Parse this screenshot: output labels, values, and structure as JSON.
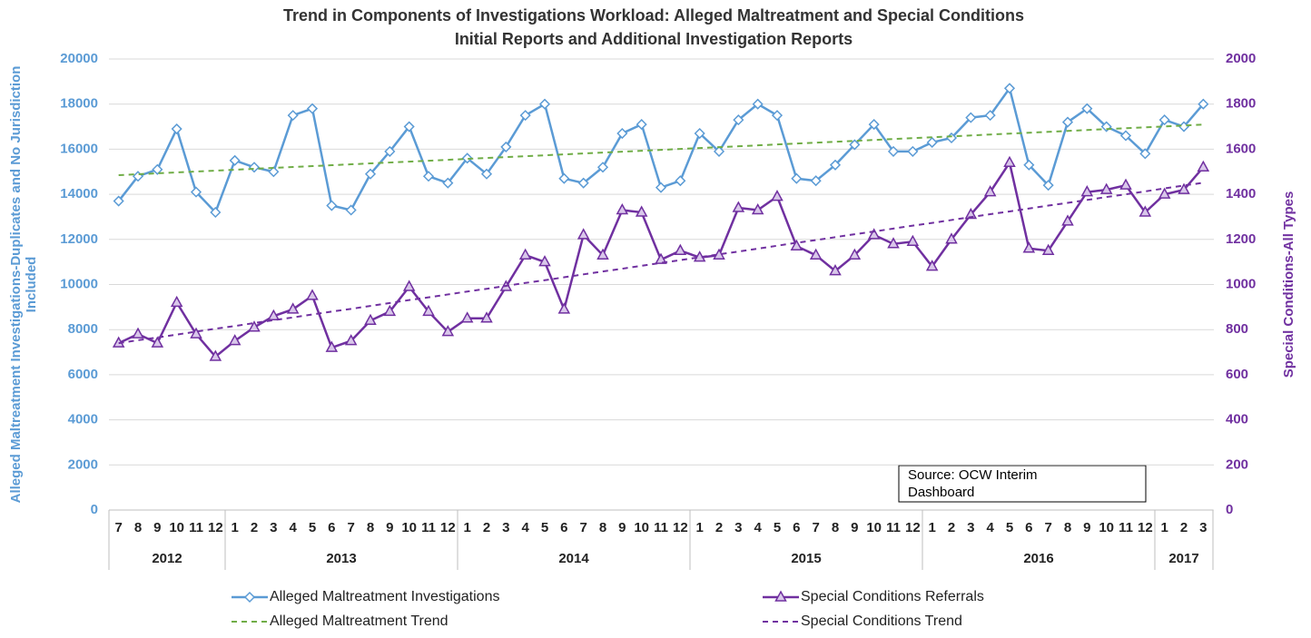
{
  "chart_data": {
    "type": "line",
    "title": [
      "Trend in Components of Investigations Workload: Alleged Maltreatment and Special Conditions",
      "Initial Reports and Additional Investigation Reports"
    ],
    "ylabel": [
      "Alleged Maltreatment Investigations-Duplicates and No Jurisdiction",
      "Included"
    ],
    "y2label": "Special Conditions-All Types",
    "categories": [
      "7",
      "8",
      "9",
      "10",
      "11",
      "12",
      "1",
      "2",
      "3",
      "4",
      "5",
      "6",
      "7",
      "8",
      "9",
      "10",
      "11",
      "12",
      "1",
      "2",
      "3",
      "4",
      "5",
      "6",
      "7",
      "8",
      "9",
      "10",
      "11",
      "12",
      "1",
      "2",
      "3",
      "4",
      "5",
      "6",
      "7",
      "8",
      "9",
      "10",
      "11",
      "12",
      "1",
      "2",
      "3",
      "4",
      "5",
      "6",
      "7",
      "8",
      "9",
      "10",
      "11",
      "12",
      "1",
      "2",
      "3"
    ],
    "year_groups": [
      {
        "label": "2012",
        "months": 6
      },
      {
        "label": "2013",
        "months": 12
      },
      {
        "label": "2014",
        "months": 12
      },
      {
        "label": "2015",
        "months": 12
      },
      {
        "label": "2016",
        "months": 12
      },
      {
        "label": "2017",
        "months": 3
      }
    ],
    "ylim": [
      0,
      20000
    ],
    "yticks": [
      0,
      2000,
      4000,
      6000,
      8000,
      10000,
      12000,
      14000,
      16000,
      18000,
      20000
    ],
    "y2lim": [
      0,
      2000
    ],
    "y2ticks": [
      0,
      200,
      400,
      600,
      800,
      1000,
      1200,
      1400,
      1600,
      1800,
      2000
    ],
    "grid": true,
    "ycolor": "#5b9bd5",
    "y2color": "#7030a0",
    "series": [
      {
        "name": "Alleged Maltreatment Investigations",
        "color": "#5b9bd5",
        "marker": "diamond",
        "axis": "y",
        "values": [
          13700,
          14800,
          15100,
          16900,
          14100,
          13200,
          15500,
          15200,
          15000,
          17500,
          17800,
          13500,
          13300,
          14900,
          15900,
          17000,
          14800,
          14500,
          15600,
          14900,
          16100,
          17500,
          18000,
          14700,
          14500,
          15200,
          16700,
          17100,
          14300,
          14600,
          16700,
          15900,
          17300,
          18000,
          17500,
          14700,
          14600,
          15300,
          16200,
          17100,
          15900,
          15900,
          16300,
          16500,
          17400,
          17500,
          18700,
          15300,
          14400,
          17200,
          17800,
          17000,
          16600,
          15800,
          17300,
          17000,
          18000
        ]
      },
      {
        "name": "Special Conditions Referrals",
        "color": "#7030a0",
        "marker": "triangle",
        "axis": "y2",
        "values": [
          740,
          780,
          740,
          920,
          780,
          680,
          750,
          810,
          860,
          890,
          950,
          720,
          750,
          840,
          880,
          990,
          880,
          790,
          850,
          850,
          990,
          1130,
          1100,
          890,
          1220,
          1130,
          1330,
          1320,
          1110,
          1150,
          1120,
          1130,
          1340,
          1330,
          1390,
          1170,
          1130,
          1060,
          1130,
          1220,
          1180,
          1190,
          1080,
          1200,
          1310,
          1410,
          1540,
          1160,
          1150,
          1280,
          1410,
          1420,
          1440,
          1320,
          1400,
          1420,
          1520
        ]
      },
      {
        "name": "Alleged Maltreatment Trend",
        "color": "#70ad47",
        "dashed": true,
        "axis": "y",
        "values": [
          14850,
          14890,
          14930,
          14970,
          15010,
          15050,
          15090,
          15130,
          15170,
          15210,
          15250,
          15290,
          15330,
          15370,
          15410,
          15450,
          15490,
          15530,
          15570,
          15610,
          15650,
          15690,
          15730,
          15770,
          15810,
          15850,
          15890,
          15930,
          15970,
          16010,
          16050,
          16090,
          16130,
          16170,
          16210,
          16250,
          16290,
          16330,
          16370,
          16410,
          16450,
          16490,
          16530,
          16570,
          16610,
          16650,
          16690,
          16730,
          16770,
          16810,
          16850,
          16890,
          16930,
          16970,
          17010,
          17050,
          17090
        ]
      },
      {
        "name": "Special Conditions Trend",
        "color": "#7030a0",
        "dashed": true,
        "axis": "y2",
        "values": [
          740,
          753,
          765,
          778,
          791,
          804,
          816,
          829,
          842,
          854,
          867,
          880,
          892,
          905,
          918,
          931,
          943,
          956,
          969,
          981,
          994,
          1007,
          1019,
          1032,
          1045,
          1058,
          1070,
          1083,
          1096,
          1108,
          1121,
          1134,
          1146,
          1159,
          1172,
          1185,
          1197,
          1210,
          1223,
          1235,
          1248,
          1261,
          1273,
          1286,
          1299,
          1312,
          1324,
          1337,
          1350,
          1362,
          1375,
          1388,
          1400,
          1413,
          1426,
          1439,
          1451
        ]
      }
    ],
    "annotation": [
      "Source: OCW Interim",
      "Dashboard"
    ]
  }
}
